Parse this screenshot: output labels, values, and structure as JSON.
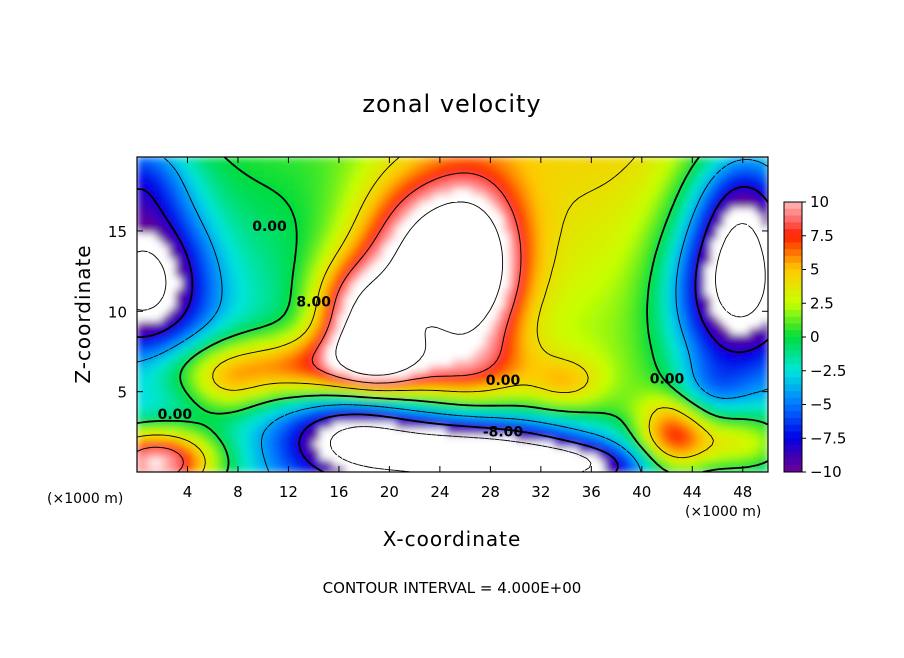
{
  "chart_data": {
    "type": "heatmap",
    "title": "zonal velocity",
    "xlabel": "X-coordinate",
    "ylabel": "Z-coordinate",
    "x_unit_label": "(×1000 m)",
    "x_unit_label_right": "(×1000 m)",
    "xlim": [
      0,
      50
    ],
    "ylim": [
      0,
      19.6
    ],
    "x_ticks": [
      4,
      8,
      12,
      16,
      20,
      24,
      28,
      32,
      36,
      40,
      44,
      48
    ],
    "y_ticks": [
      5,
      10,
      15
    ],
    "colorbar": {
      "range": [
        -10,
        10
      ],
      "ticks": [
        "10",
        "7.5",
        "5",
        "2.5",
        "0",
        "-2.5",
        "-5",
        "-7.5",
        "-10"
      ]
    },
    "contour_interval_text": "CONTOUR INTERVAL = 4.000E+00",
    "contour_labels": [
      {
        "text": "0.00",
        "x": 10.5,
        "y": 15.0
      },
      {
        "text": "8.00",
        "x": 14.0,
        "y": 10.3
      },
      {
        "text": "0.00",
        "x": 3.0,
        "y": 3.3
      },
      {
        "text": "0.00",
        "x": 29.0,
        "y": 5.4
      },
      {
        "text": "0.00",
        "x": 42.0,
        "y": 5.5
      },
      {
        "text": "-8.00",
        "x": 29.0,
        "y": 2.2
      }
    ],
    "features": [
      {
        "kind": "max",
        "x": 23.5,
        "y": 13.0,
        "value": 14
      },
      {
        "kind": "max",
        "x": 19.0,
        "y": 7.5,
        "value": 11
      },
      {
        "kind": "min",
        "x": 0.8,
        "y": 12.0,
        "value": -13
      },
      {
        "kind": "min",
        "x": 47.0,
        "y": 11.5,
        "value": -13
      },
      {
        "kind": "min",
        "x": 26.0,
        "y": 1.5,
        "value": -12
      },
      {
        "kind": "max",
        "x": 1.5,
        "y": 0.6,
        "value": 11
      },
      {
        "kind": "max",
        "x": 42.5,
        "y": 2.0,
        "value": 8
      }
    ]
  }
}
